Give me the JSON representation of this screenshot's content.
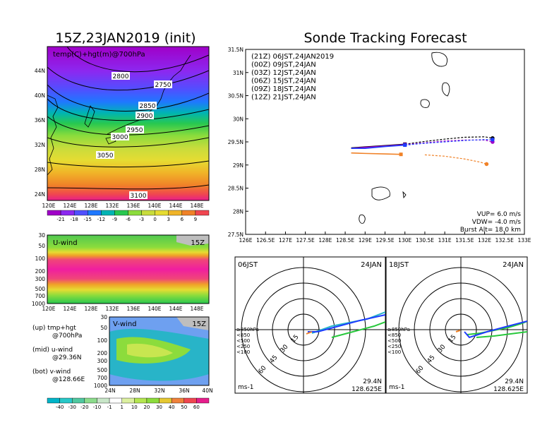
{
  "left": {
    "title": "15Z,23JAN2019 (init)",
    "map_label": "temp(C)+hgt(m)@700hPa",
    "map_lat_ticks": [
      "44N",
      "40N",
      "36N",
      "32N",
      "28N",
      "24N"
    ],
    "map_lon_ticks": [
      "120E",
      "124E",
      "128E",
      "132E",
      "136E",
      "140E",
      "144E",
      "148E"
    ],
    "contour_labels": [
      "2750",
      "2800",
      "2850",
      "2900",
      "2950",
      "3000",
      "3050",
      "3100"
    ],
    "temp_colorbar": [
      "-21",
      "-18",
      "-15",
      "-12",
      "-9",
      "-6",
      "-3",
      "0",
      "3",
      "6",
      "9"
    ],
    "uwind_label": "U-wind",
    "uwind_time": "15Z",
    "uwind_p_ticks": [
      "30",
      "50",
      "100",
      "200",
      "300",
      "500",
      "700",
      "1000"
    ],
    "uwind_lon_ticks": [
      "120E",
      "124E",
      "128E",
      "132E",
      "136E",
      "140E",
      "144E",
      "148E"
    ],
    "vwind_label": "V-wind",
    "vwind_time": "15Z",
    "vwind_p_ticks": [
      "30",
      "50",
      "100",
      "200",
      "300",
      "500",
      "700",
      "1000"
    ],
    "vwind_lat_ticks": [
      "24N",
      "28N",
      "32N",
      "36N",
      "40N"
    ],
    "legend": [
      "(up) tmp+hgt",
      "@700hPa",
      "(mid) u-wind",
      "@29.36N",
      "(bot) v-wind",
      "@128.66E"
    ],
    "wind_colorbar": [
      "-40",
      "-30",
      "-20",
      "-10",
      "-1",
      "1",
      "10",
      "20",
      "30",
      "40",
      "50",
      "60"
    ]
  },
  "right": {
    "title": "Sonde Tracking Forecast",
    "track_legend": [
      {
        "text": "(21Z)  06JST,24JAN2019",
        "color": "#000000"
      },
      {
        "text": "(00Z)  09JST,24JAN",
        "color": "#a000c8"
      },
      {
        "text": "(03Z)  12JST,24JAN",
        "color": "#1e3cff"
      },
      {
        "text": "(06Z)  15JST,24JAN",
        "color": "#00b400"
      },
      {
        "text": "(09Z)  18JST,24JAN",
        "color": "#e6c800"
      },
      {
        "text": "(12Z)  21JST,24JAN",
        "color": "#f08228"
      }
    ],
    "info": [
      "VUP=  6.0  m/s",
      "VDW= -4.0  m/s",
      "Burst Alt=  18.0  km"
    ],
    "hodo1": {
      "time": "06JST",
      "date": "24JAN",
      "loc1": "29.4N",
      "loc2": "128.625E",
      "unit": "ms-1"
    },
    "hodo2": {
      "time": "18JST",
      "date": "24JAN",
      "loc1": "29.4N",
      "loc2": "128.625E",
      "unit": "ms-1"
    },
    "hodo_ring_labels": [
      "15",
      "30",
      "45",
      "60"
    ],
    "hodo_legend": [
      {
        "text": "≥850hPa",
        "color": "#f03c3c"
      },
      {
        "text": "<850",
        "color": "#f0a000"
      },
      {
        "text": "<500",
        "color": "#00c800"
      },
      {
        "text": "<250",
        "color": "#00a0ff"
      },
      {
        "text": "<100",
        "color": "#5050ff"
      }
    ]
  },
  "chart_data": {
    "type": "line",
    "title": "Sonde Tracking Forecast",
    "xlim": [
      126,
      133
    ],
    "ylim": [
      27.5,
      31.5
    ],
    "x_ticks": [
      "126E",
      "126.5E",
      "127E",
      "127.5E",
      "128E",
      "128.5E",
      "129E",
      "129.5E",
      "130E",
      "130.5E",
      "131E",
      "131.5E",
      "132E",
      "132.5E",
      "133E"
    ],
    "y_ticks": [
      "27.5N",
      "28N",
      "28.5N",
      "29N",
      "29.5N",
      "30N",
      "30.5N",
      "31N",
      "31.5N"
    ],
    "series": [
      {
        "name": "(21Z)  06JST,24JAN2019",
        "color": "#000000",
        "points": [
          [
            128.65,
            29.37
          ],
          [
            129.0,
            29.39
          ],
          [
            129.5,
            29.42
          ],
          [
            130.0,
            29.45
          ],
          [
            130.5,
            29.51
          ],
          [
            131.0,
            29.56
          ],
          [
            131.5,
            29.6
          ],
          [
            132.0,
            29.61
          ],
          [
            132.2,
            29.58
          ]
        ]
      },
      {
        "name": "(00Z)  09JST,24JAN",
        "color": "#a000c8",
        "points": [
          [
            128.65,
            29.36
          ],
          [
            129.0,
            29.38
          ],
          [
            129.5,
            29.41
          ],
          [
            130.0,
            29.44
          ],
          [
            130.5,
            29.48
          ],
          [
            131.0,
            29.52
          ],
          [
            131.5,
            29.54
          ],
          [
            132.0,
            29.54
          ],
          [
            132.2,
            29.5
          ]
        ]
      },
      {
        "name": "(03Z)  12JST,24JAN",
        "color": "#1e3cff",
        "points": [
          [
            128.65,
            29.36
          ],
          [
            129.0,
            29.36
          ],
          [
            129.5,
            29.4
          ],
          [
            130.0,
            29.43
          ],
          [
            130.5,
            29.47
          ],
          [
            131.0,
            29.5
          ],
          [
            131.5,
            29.53
          ],
          [
            132.0,
            29.55
          ],
          [
            132.2,
            29.55
          ]
        ]
      },
      {
        "name": "(12Z)  21JST,24JAN",
        "color": "#f08228",
        "points": [
          [
            128.65,
            29.26
          ],
          [
            129.0,
            29.25
          ],
          [
            129.5,
            29.24
          ],
          [
            129.9,
            29.23
          ],
          [
            130.5,
            29.22
          ],
          [
            131.0,
            29.19
          ],
          [
            131.5,
            29.13
          ],
          [
            131.9,
            29.06
          ],
          [
            132.05,
            29.02
          ]
        ]
      }
    ]
  }
}
